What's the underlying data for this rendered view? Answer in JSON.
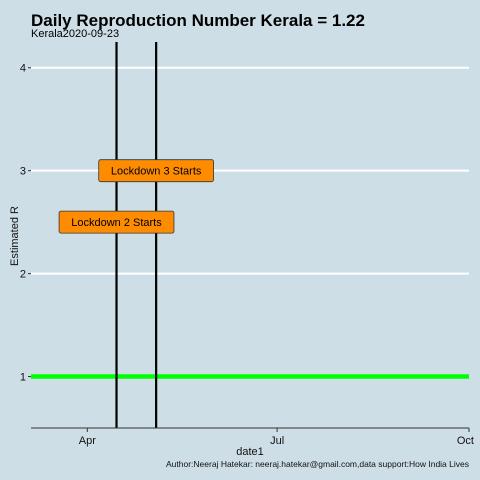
{
  "chart_data": {
    "type": "line",
    "title": "Daily Reproduction Number Kerala = 1.22",
    "subtitle": "Kerala2020-09-23",
    "xlabel": "date1",
    "ylabel": "Estimated R",
    "caption": "Author:Neeraj Hatekar: neeraj.hatekar@gmail.com,data support:How India Lives",
    "x_range": [
      "2020-03-05",
      "2020-10-01"
    ],
    "ylim": [
      0.5,
      4.25
    ],
    "x_ticks": [
      {
        "date": "2020-04-01",
        "label": "Apr"
      },
      {
        "date": "2020-07-01",
        "label": "Jul"
      },
      {
        "date": "2020-10-01",
        "label": "Oct"
      }
    ],
    "y_ticks": [
      1,
      2,
      3,
      4
    ],
    "grid": true,
    "reference_line": {
      "y": 1,
      "color": "#00ff00"
    },
    "vlines": [
      {
        "date": "2020-04-15",
        "color": "#000000"
      },
      {
        "date": "2020-05-04",
        "color": "#000000"
      }
    ],
    "annotations": [
      {
        "text": "Lockdown 3 Starts",
        "date": "2020-05-04",
        "y": 3,
        "fill": "#ff8c00"
      },
      {
        "text": "Lockdown 2 Starts",
        "date": "2020-04-15",
        "y": 2.5,
        "fill": "#ff8c00"
      }
    ],
    "colors": {
      "background": "#cddee6",
      "grid": "#ffffff",
      "axis": "#333333"
    }
  }
}
